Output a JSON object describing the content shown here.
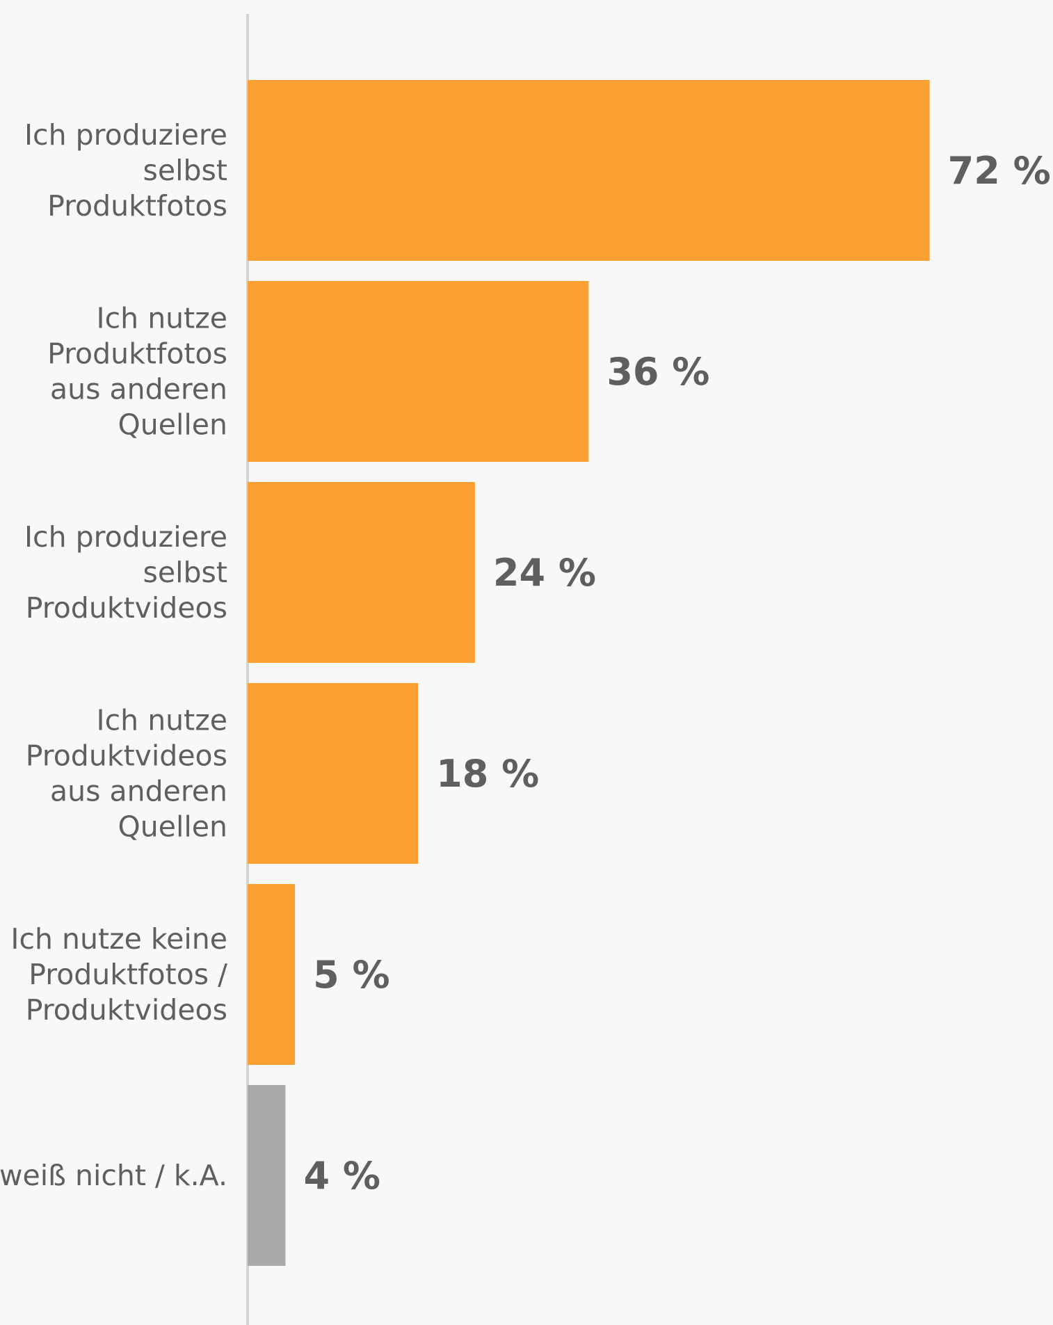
{
  "chart_data": {
    "type": "bar",
    "orientation": "horizontal",
    "categories": [
      "Ich produziere selbst Produktfotos",
      "Ich nutze Produktfotos aus anderen Quellen",
      "Ich produziere selbst Produktvideos",
      "Ich nutze Produktvideos aus anderen Quellen",
      "Ich nutze keine Produktfotos / Produktvideos",
      "weiß nicht / k.A."
    ],
    "category_lines": [
      [
        "Ich produziere",
        "selbst",
        "Produktfotos"
      ],
      [
        "Ich nutze",
        "Produktfotos",
        "aus anderen",
        "Quellen"
      ],
      [
        "Ich produziere",
        "selbst",
        "Produktvideos"
      ],
      [
        "Ich nutze",
        "Produktvideos",
        "aus anderen",
        "Quellen"
      ],
      [
        "Ich nutze keine",
        "Produktfotos /",
        "Produktvideos"
      ],
      [
        "weiß nicht / k.A."
      ]
    ],
    "values": [
      72,
      36,
      24,
      18,
      5,
      4
    ],
    "value_labels": [
      "72 %",
      "36 %",
      "24 %",
      "18 %",
      "5 %",
      "4 %"
    ],
    "bar_colors": [
      "#fca034",
      "#fca034",
      "#fca034",
      "#fca034",
      "#fca034",
      "#a9a9a9"
    ],
    "xlim": [
      0,
      100
    ],
    "grid": false,
    "legend": "none"
  }
}
